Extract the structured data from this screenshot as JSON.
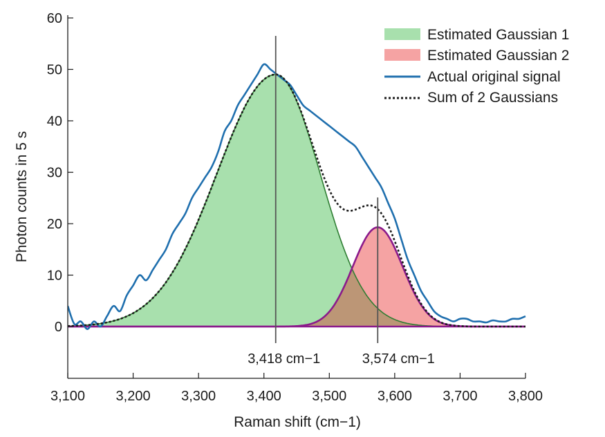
{
  "chart_data": {
    "type": "area",
    "title": "",
    "xlabel": "Raman shift (cm−1)",
    "ylabel": "Photon counts in 5 s",
    "xlim": [
      3100,
      3800
    ],
    "ylim": [
      -10,
      60
    ],
    "x_ticks": [
      3100,
      3200,
      3300,
      3400,
      3500,
      3600,
      3700,
      3800
    ],
    "x_tick_labels": [
      "3,100",
      "3,200",
      "3,300",
      "3,400",
      "3,500",
      "3,600",
      "3,700",
      "3,800"
    ],
    "y_ticks": [
      0,
      10,
      20,
      30,
      40,
      50,
      60
    ],
    "y_tick_labels": [
      "0",
      "10",
      "20",
      "30",
      "40",
      "50",
      "60"
    ],
    "grid": false,
    "legend_position": "top-right",
    "gaussians": [
      {
        "name": "Estimated Gaussian 1",
        "center": 3418,
        "amplitude": 49,
        "sigma_left": 90,
        "sigma_right": 68,
        "fill": "#a8e0ad",
        "edge": "#2e7d32"
      },
      {
        "name": "Estimated Gaussian 2",
        "center": 3574,
        "amplitude": 19.3,
        "sigma": 38,
        "fill": "#f5a3a3",
        "edge": "#8b1a8b"
      }
    ],
    "overlap_fill": "#bc9676",
    "baseline_color": "#8b1a8b",
    "sum_series": {
      "name": "Sum of 2 Gaussians",
      "color": "#1a1a1a"
    },
    "signal_series": {
      "name": "Actual original signal",
      "color": "#1f6fae",
      "x": [
        3100,
        3110,
        3120,
        3130,
        3140,
        3150,
        3160,
        3170,
        3180,
        3190,
        3200,
        3210,
        3220,
        3230,
        3240,
        3250,
        3260,
        3270,
        3280,
        3290,
        3300,
        3310,
        3320,
        3330,
        3340,
        3350,
        3360,
        3370,
        3380,
        3390,
        3400,
        3410,
        3420,
        3430,
        3440,
        3450,
        3460,
        3470,
        3480,
        3490,
        3500,
        3510,
        3520,
        3530,
        3540,
        3550,
        3560,
        3570,
        3580,
        3590,
        3600,
        3610,
        3620,
        3630,
        3640,
        3650,
        3660,
        3670,
        3680,
        3690,
        3700,
        3710,
        3720,
        3730,
        3740,
        3750,
        3760,
        3770,
        3780,
        3790,
        3800
      ],
      "y": [
        4,
        0.5,
        1,
        -0.5,
        1,
        0,
        2,
        4,
        3,
        6,
        8,
        10,
        9,
        11,
        13,
        15,
        18,
        20,
        22,
        25,
        27,
        29,
        31,
        34,
        38,
        40,
        43,
        45,
        47,
        49,
        51,
        50,
        49,
        48,
        47,
        45,
        43,
        42,
        41,
        40,
        39,
        38,
        37,
        36,
        35,
        33,
        31,
        29,
        27,
        24,
        21,
        17,
        13,
        10,
        7,
        5,
        3,
        2,
        1.5,
        1,
        1.5,
        1.5,
        1,
        1,
        0.8,
        1.2,
        1,
        1,
        1.5,
        1.5,
        2
      ]
    },
    "legend": [
      {
        "label": "Estimated Gaussian 1",
        "kind": "patch",
        "color": "#a8e0ad"
      },
      {
        "label": "Estimated Gaussian 2",
        "kind": "patch",
        "color": "#f5a3a3"
      },
      {
        "label": "Actual original signal",
        "kind": "line",
        "color": "#1f6fae"
      },
      {
        "label": "Sum of 2 Gaussians",
        "kind": "dotted",
        "color": "#1a1a1a"
      }
    ],
    "peak_markers": [
      {
        "x": 3418,
        "label": "3,418 cm−1"
      },
      {
        "x": 3574,
        "label": "3,574 cm−1"
      }
    ]
  }
}
